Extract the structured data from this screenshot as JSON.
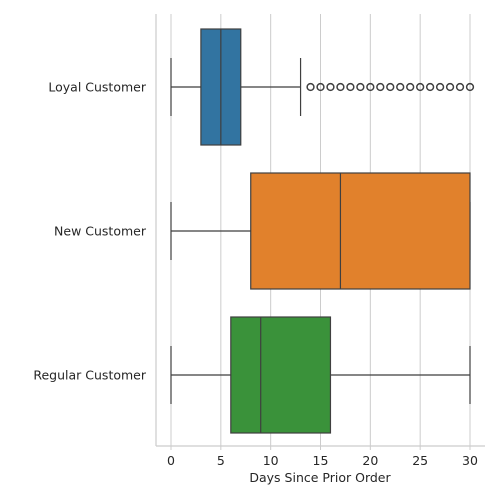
{
  "chart_data": {
    "type": "box",
    "orientation": "horizontal",
    "xlabel": "Days Since Prior Order",
    "ylabel": "",
    "xlim": [
      -1.5,
      31.5
    ],
    "xticks": [
      0,
      5,
      10,
      15,
      20,
      25,
      30
    ],
    "xtick_labels": [
      "0",
      "5",
      "10",
      "15",
      "20",
      "25",
      "30"
    ],
    "grid": "vertical",
    "categories": [
      "Loyal Customer",
      "New Customer",
      "Regular Customer"
    ],
    "boxes": [
      {
        "category": "Loyal Customer",
        "color": "#3274a1",
        "whisker_low": 0,
        "q1": 3,
        "median": 5,
        "q3": 7,
        "whisker_high": 13,
        "outliers": [
          14,
          15,
          16,
          17,
          18,
          19,
          20,
          21,
          22,
          23,
          24,
          25,
          26,
          27,
          28,
          29,
          30
        ]
      },
      {
        "category": "New Customer",
        "color": "#e1812c",
        "whisker_low": 0,
        "q1": 8,
        "median": 17,
        "q3": 30,
        "whisker_high": 30,
        "outliers": []
      },
      {
        "category": "Regular Customer",
        "color": "#3a923a",
        "whisker_low": 0,
        "q1": 6,
        "median": 9,
        "q3": 16,
        "whisker_high": 30,
        "outliers": []
      }
    ]
  }
}
